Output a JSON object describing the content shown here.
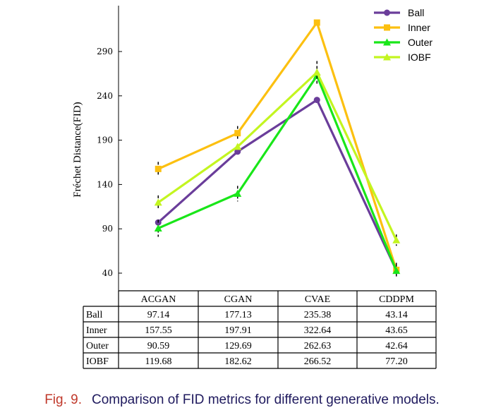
{
  "chart_data": {
    "type": "line",
    "title": "",
    "xlabel": "",
    "ylabel": "Fréchet Distance(FID)",
    "ylim": [
      25,
      330
    ],
    "yticks": [
      40,
      90,
      140,
      190,
      240,
      290
    ],
    "categories": [
      "ACGAN",
      "CGAN",
      "CVAE",
      "CDDPM"
    ],
    "series": [
      {
        "name": "Ball",
        "color": "#6a3d9a",
        "marker": "circle",
        "values": [
          97.14,
          177.13,
          235.38,
          43.14
        ]
      },
      {
        "name": "Inner",
        "color": "#fcc010",
        "marker": "square",
        "values": [
          157.55,
          197.91,
          322.64,
          43.65
        ]
      },
      {
        "name": "Outer",
        "color": "#19e619",
        "marker": "triangle",
        "values": [
          90.59,
          129.69,
          262.63,
          42.64
        ]
      },
      {
        "name": "IOBF",
        "color": "#c3f520",
        "marker": "triangle",
        "values": [
          119.68,
          182.62,
          266.52,
          77.2
        ]
      }
    ],
    "legend": {
      "position": "top-right"
    },
    "grid": false,
    "table": {
      "header": [
        "ACGAN",
        "CGAN",
        "CVAE",
        "CDDPM"
      ],
      "rows": [
        {
          "label": "Ball",
          "cells": [
            "97.14",
            "177.13",
            "235.38",
            "43.14"
          ]
        },
        {
          "label": "Inner",
          "cells": [
            "157.55",
            "197.91",
            "322.64",
            "43.65"
          ]
        },
        {
          "label": "Outer",
          "cells": [
            "90.59",
            "129.69",
            "262.63",
            "42.64"
          ]
        },
        {
          "label": "IOBF",
          "cells": [
            "119.68",
            "182.62",
            "266.52",
            "77.20"
          ]
        }
      ]
    }
  },
  "caption": {
    "label": "Fig. 9.",
    "text": "Comparison of FID metrics for different generative models."
  }
}
